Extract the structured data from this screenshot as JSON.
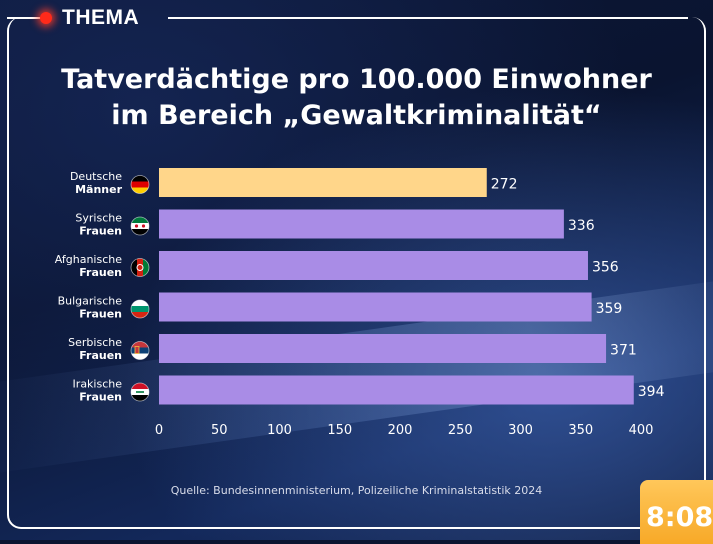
{
  "header": {
    "label": "THEMA"
  },
  "title": {
    "line1": "Tatverdächtige pro 100.000 Einwohner",
    "line2": "im Bereich „Gewaltkriminalität“"
  },
  "colors": {
    "highlight": "#ffd68a",
    "bar": "#a98ce6"
  },
  "chart_data": {
    "type": "bar",
    "orientation": "horizontal",
    "title": "Tatverdächtige pro 100.000 Einwohner im Bereich „Gewaltkriminalität“",
    "categories": [
      {
        "line1": "Deutsche",
        "line2": "Männer",
        "flag": "germany-flag-icon"
      },
      {
        "line1": "Syrische",
        "line2": "Frauen",
        "flag": "syria-flag-icon"
      },
      {
        "line1": "Afghanische",
        "line2": "Frauen",
        "flag": "afghanistan-flag-icon"
      },
      {
        "line1": "Bulgarische",
        "line2": "Frauen",
        "flag": "bulgaria-flag-icon"
      },
      {
        "line1": "Serbische",
        "line2": "Frauen",
        "flag": "serbia-flag-icon"
      },
      {
        "line1": "Irakische",
        "line2": "Frauen",
        "flag": "iraq-flag-icon"
      }
    ],
    "values": [
      272,
      336,
      356,
      359,
      371,
      394
    ],
    "highlight_index": 0,
    "xlim": [
      0,
      400
    ],
    "xticks": [
      "0",
      "50",
      "100",
      "150",
      "200",
      "250",
      "300",
      "350",
      "400"
    ],
    "grid": false
  },
  "source": "Quelle: Bundesinnenministerium, Polizeiliche Kriminalstatistik 2024",
  "clock": "8:08"
}
